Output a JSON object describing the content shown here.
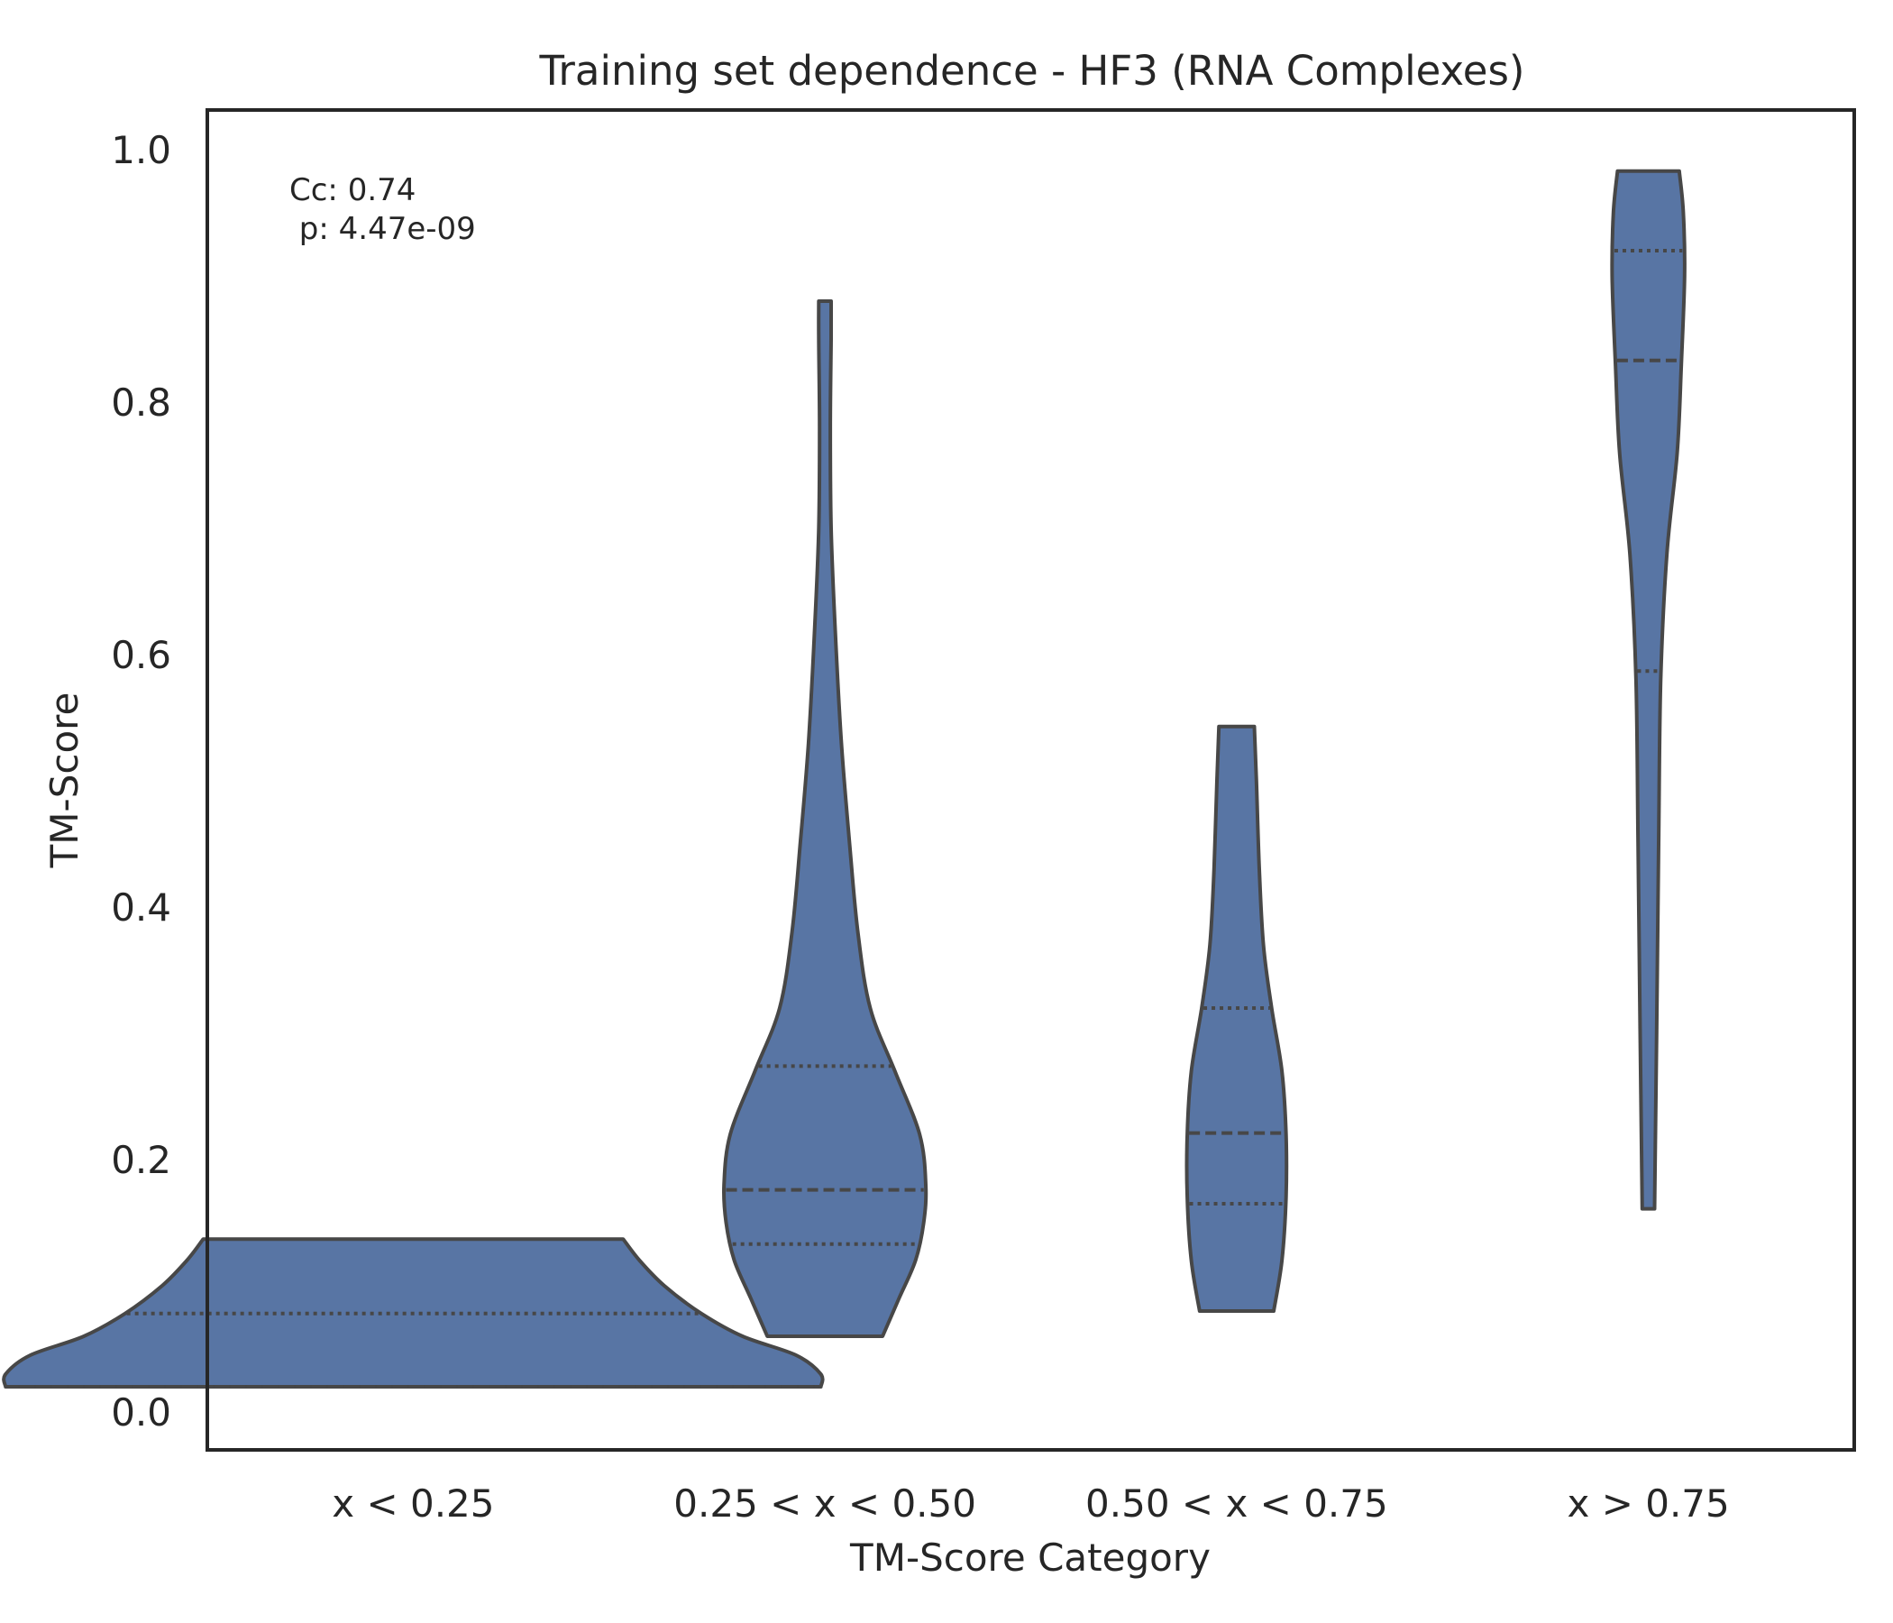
{
  "chart_data": {
    "type": "violin",
    "title": "Training set dependence - HF3 (RNA Complexes)",
    "xlabel": "TM-Score Category",
    "ylabel": "TM-Score",
    "ylim": [
      -0.06,
      1.03
    ],
    "yticks": [
      0.0,
      0.2,
      0.4,
      0.6,
      0.8,
      1.0
    ],
    "ytick_labels": [
      "0.0",
      "0.2",
      "0.4",
      "0.6",
      "0.8",
      "1.0"
    ],
    "categories": [
      "x < 0.25",
      "0.25 < x < 0.50",
      "0.50 < x < 0.75",
      "x > 0.75"
    ],
    "grid": false,
    "color": "#5875a4",
    "edge_color": "#474747",
    "inner": "quartile",
    "violins": [
      {
        "category": "x < 0.25",
        "min": 0.02,
        "q1": 0.02,
        "median": 0.02,
        "q3": 0.078,
        "max": 0.137,
        "profile": [
          [
            0.02,
            0.99
          ],
          [
            0.03,
            0.99
          ],
          [
            0.045,
            0.93
          ],
          [
            0.06,
            0.8
          ],
          [
            0.078,
            0.7
          ],
          [
            0.1,
            0.61
          ],
          [
            0.12,
            0.55
          ],
          [
            0.137,
            0.51
          ]
        ]
      },
      {
        "category": "0.25 < x < 0.50",
        "min": 0.06,
        "q1": 0.133,
        "median": 0.176,
        "q3": 0.274,
        "max": 0.88,
        "profile": [
          [
            0.06,
            0.14
          ],
          [
            0.09,
            0.18
          ],
          [
            0.12,
            0.22
          ],
          [
            0.15,
            0.24
          ],
          [
            0.18,
            0.245
          ],
          [
            0.22,
            0.23
          ],
          [
            0.27,
            0.17
          ],
          [
            0.32,
            0.11
          ],
          [
            0.38,
            0.08
          ],
          [
            0.45,
            0.06
          ],
          [
            0.53,
            0.04
          ],
          [
            0.62,
            0.025
          ],
          [
            0.7,
            0.015
          ],
          [
            0.78,
            0.013
          ],
          [
            0.85,
            0.015
          ],
          [
            0.88,
            0.015
          ]
        ]
      },
      {
        "category": "0.50 < x < 0.75",
        "min": 0.08,
        "q1": 0.165,
        "median": 0.221,
        "q3": 0.32,
        "max": 0.543,
        "profile": [
          [
            0.08,
            0.09
          ],
          [
            0.12,
            0.11
          ],
          [
            0.17,
            0.12
          ],
          [
            0.22,
            0.12
          ],
          [
            0.27,
            0.11
          ],
          [
            0.32,
            0.085
          ],
          [
            0.37,
            0.065
          ],
          [
            0.43,
            0.055
          ],
          [
            0.5,
            0.048
          ],
          [
            0.543,
            0.043
          ]
        ]
      },
      {
        "category": "x > 0.75",
        "min": 0.161,
        "q1": 0.587,
        "median": 0.833,
        "q3": 0.92,
        "max": 0.983,
        "profile": [
          [
            0.161,
            0.015
          ],
          [
            0.3,
            0.02
          ],
          [
            0.45,
            0.025
          ],
          [
            0.58,
            0.03
          ],
          [
            0.68,
            0.045
          ],
          [
            0.76,
            0.07
          ],
          [
            0.83,
            0.08
          ],
          [
            0.9,
            0.088
          ],
          [
            0.95,
            0.085
          ],
          [
            0.983,
            0.075
          ]
        ]
      }
    ],
    "annotation": {
      "line1": "Cc: 0.74",
      "line2": " p: 4.47e-09",
      "placement": "top-left"
    }
  }
}
